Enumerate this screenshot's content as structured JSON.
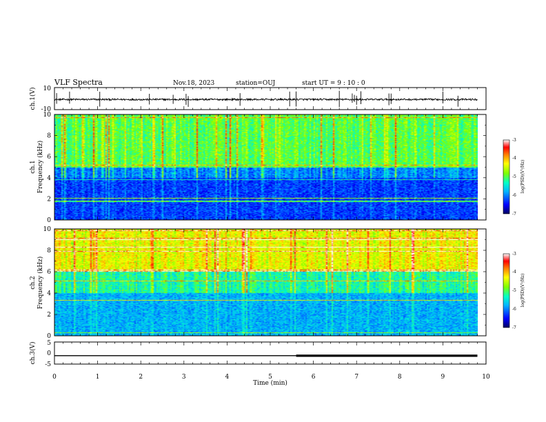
{
  "header": {
    "title": "VLF Spectra",
    "date": "Nov.18, 2023",
    "station": "station=OUJ",
    "start": "start  UT =  9 : 10 : 0"
  },
  "chart_data": [
    {
      "id": "ch1-waveform",
      "type": "line",
      "ylabel": "ch.1(V)",
      "ylim": [
        -10,
        10
      ],
      "yticks": [
        "10",
        "-10"
      ],
      "xlim": [
        0,
        10
      ],
      "baseline": -0.8,
      "spikes_min": [
        0.05,
        0.35,
        1.05,
        2.2,
        2.75,
        3.05,
        3.1,
        4.3,
        5.45,
        5.6,
        6.6,
        6.9,
        6.95,
        7.0,
        7.1,
        7.75,
        7.8,
        9.0,
        9.35
      ]
    },
    {
      "id": "ch1-spectrogram",
      "type": "heatmap",
      "ylabel": "ch.1\nFrequency (kHz)",
      "ylabel_top": "ch.1",
      "ylabel_bottom": "Frequency (kHz)",
      "xlim": [
        0,
        10
      ],
      "ylim": [
        0,
        10
      ],
      "yticks": [
        "0",
        "2",
        "4",
        "6",
        "8",
        "10"
      ],
      "colorbar": {
        "label": "log(PSD)(V²/Hz)",
        "range": [
          -7,
          -3
        ],
        "ticks": [
          "-3",
          "-4",
          "-5",
          "-6",
          "-7"
        ]
      },
      "description_levels": {
        "0-4kHz": -6.3,
        "4-5kHz": -6.0,
        "5-10kHz": -5.0
      }
    },
    {
      "id": "ch2-spectrogram",
      "type": "heatmap",
      "ylabel": "ch.2\nFrequency (kHz)",
      "ylabel_top": "ch.2",
      "ylabel_bottom": "Frequency (kHz)",
      "xlim": [
        0,
        10
      ],
      "ylim": [
        0,
        10
      ],
      "yticks": [
        "0",
        "2",
        "4",
        "6",
        "8",
        "10"
      ],
      "colorbar": {
        "label": "log(PSD)(V²/Hz)",
        "range": [
          -7,
          -3
        ],
        "ticks": [
          "-3",
          "-4",
          "-5",
          "-6",
          "-7"
        ]
      },
      "description_levels": {
        "0-4kHz": -5.8,
        "4-6kHz": -5.3,
        "6-10kHz": -4.4
      }
    },
    {
      "id": "ch3-waveform",
      "type": "line",
      "ylabel": "ch.3(V)",
      "xlabel": "Time (min)",
      "ylim": [
        -5,
        5
      ],
      "yticks": [
        "5",
        "0",
        "-5"
      ],
      "xlim": [
        0,
        10
      ],
      "xticks": [
        "0",
        "1",
        "2",
        "3",
        "4",
        "5",
        "6",
        "7",
        "8",
        "9",
        "10"
      ],
      "segments": [
        {
          "x": [
            0,
            5.6
          ],
          "y": -1.2,
          "weight": "thin"
        },
        {
          "x": [
            5.6,
            9.8
          ],
          "y": -1.2,
          "weight": "thick"
        }
      ]
    }
  ],
  "colors": {
    "scale": [
      "#000080",
      "#0000ff",
      "#00b4ff",
      "#00ffc8",
      "#7fff00",
      "#ffff00",
      "#ff8000",
      "#ff0000",
      "#ffffff"
    ]
  }
}
